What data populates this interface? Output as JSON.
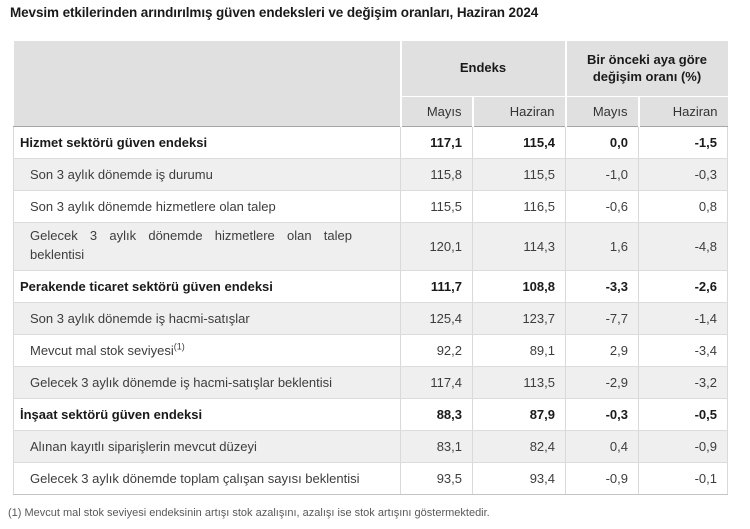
{
  "title": "Mevsim etkilerinden arındırılmış güven endeksleri ve değişim oranları, Haziran 2024",
  "table": {
    "header_groups": [
      {
        "label": "Endeks"
      },
      {
        "label": "Bir önceki aya göre değişim oranı (%)"
      }
    ],
    "sub_headers": [
      "Mayıs",
      "Haziran",
      "Mayıs",
      "Haziran"
    ],
    "rows": [
      {
        "label": "Hizmet sektörü güven endeksi",
        "values": [
          "117,1",
          "115,4",
          "0,0",
          "-1,5"
        ]
      },
      {
        "label": "Son 3 aylık dönemde iş durumu",
        "values": [
          "115,8",
          "115,5",
          "-1,0",
          "-0,3"
        ]
      },
      {
        "label": "Son 3 aylık dönemde hizmetlere olan talep",
        "values": [
          "115,5",
          "116,5",
          "-0,6",
          "0,8"
        ]
      },
      {
        "label": "Gelecek 3 aylık dönemde hizmetlere olan talep beklentisi",
        "values": [
          "120,1",
          "114,3",
          "1,6",
          "-4,8"
        ]
      },
      {
        "label": "Perakende ticaret sektörü güven endeksi",
        "values": [
          "111,7",
          "108,8",
          "-3,3",
          "-2,6"
        ]
      },
      {
        "label": "Son 3 aylık dönemde iş hacmi-satışlar",
        "values": [
          "125,4",
          "123,7",
          "-7,7",
          "-1,4"
        ]
      },
      {
        "label": "Mevcut mal stok seviyesi",
        "label_sup": "(1)",
        "values": [
          "92,2",
          "89,1",
          "2,9",
          "-3,4"
        ]
      },
      {
        "label": "Gelecek 3 aylık dönemde iş hacmi-satışlar beklentisi",
        "values": [
          "117,4",
          "113,5",
          "-2,9",
          "-3,2"
        ]
      },
      {
        "label": "İnşaat sektörü güven endeksi",
        "values": [
          "88,3",
          "87,9",
          "-0,3",
          "-0,5"
        ]
      },
      {
        "label": "Alınan kayıtlı siparişlerin mevcut düzeyi",
        "values": [
          "83,1",
          "82,4",
          "0,4",
          "-0,9"
        ]
      },
      {
        "label": "Gelecek 3 aylık dönemde toplam çalışan sayısı beklentisi",
        "values": [
          "93,5",
          "93,4",
          "-0,9",
          "-0,1"
        ]
      }
    ]
  },
  "footnote": "(1) Mevcut mal stok seviyesi endeksinin artışı stok azalışını, azalışı ise stok artışını göstermektedir.",
  "colors": {
    "header_bg": "#e0e0e0",
    "stripe_bg": "#efefef",
    "border_strong": "#a6a6a6",
    "border_light": "#d9d9d9",
    "text_primary": "#1a1a1a",
    "text_secondary": "#3d3d3d"
  }
}
